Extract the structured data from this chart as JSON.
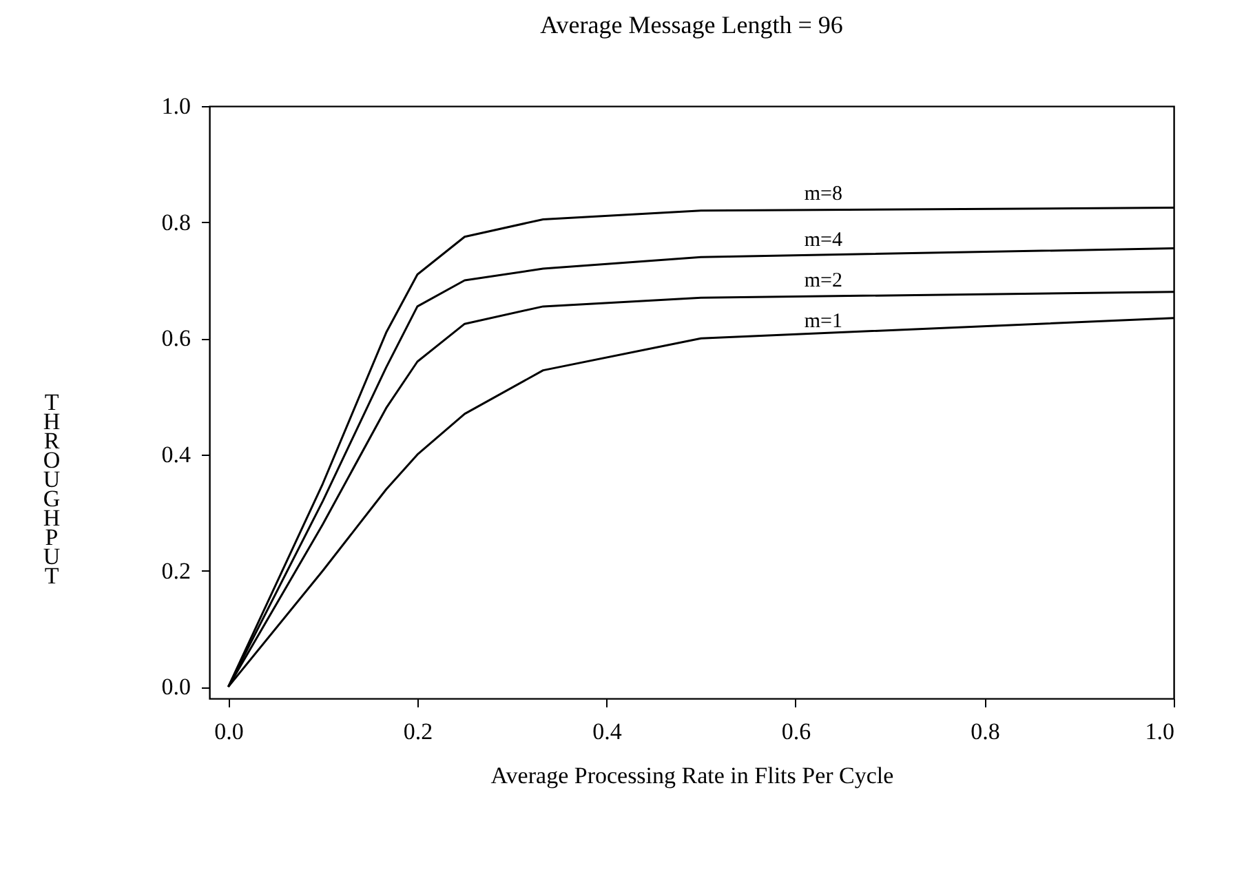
{
  "chart_data": {
    "type": "line",
    "title": "Average Message Length = 96",
    "xlabel": "Average Processing Rate in Flits Per Cycle",
    "ylabel": "THROUGHPUT",
    "x": [
      0,
      0.1,
      0.167,
      0.2,
      0.25,
      0.333,
      0.5,
      1.0
    ],
    "series": [
      {
        "name": "m=8",
        "color": "#000000",
        "values": [
          0,
          0.35,
          0.61,
          0.71,
          0.775,
          0.805,
          0.82,
          0.825
        ]
      },
      {
        "name": "m=4",
        "color": "#000000",
        "values": [
          0,
          0.32,
          0.55,
          0.655,
          0.7,
          0.72,
          0.74,
          0.755
        ]
      },
      {
        "name": "m=2",
        "color": "#000000",
        "values": [
          0,
          0.28,
          0.48,
          0.56,
          0.625,
          0.655,
          0.67,
          0.68
        ]
      },
      {
        "name": "m=1",
        "color": "#000000",
        "values": [
          0,
          0.2,
          0.34,
          0.4,
          0.47,
          0.545,
          0.6,
          0.635
        ]
      }
    ],
    "xlim": [
      -0.02,
      1.0
    ],
    "ylim": [
      -0.02,
      1.0
    ],
    "xticks": [
      {
        "value": 0,
        "label": "0.0"
      },
      {
        "value": 0.2,
        "label": "0.2"
      },
      {
        "value": 0.4,
        "label": "0.4"
      },
      {
        "value": 0.6,
        "label": "0.6"
      },
      {
        "value": 0.8,
        "label": "0.8"
      },
      {
        "value": 1,
        "label": "1.0"
      }
    ],
    "yticks": [
      {
        "value": 0,
        "label": "0.0"
      },
      {
        "value": 0.2,
        "label": "0.2"
      },
      {
        "value": 0.4,
        "label": "0.4"
      },
      {
        "value": 0.6,
        "label": "0.6"
      },
      {
        "value": 0.8,
        "label": "0.8"
      },
      {
        "value": 1,
        "label": "1.0"
      }
    ],
    "grid": false,
    "legend": false,
    "marker": "none",
    "line_style": "solid"
  }
}
